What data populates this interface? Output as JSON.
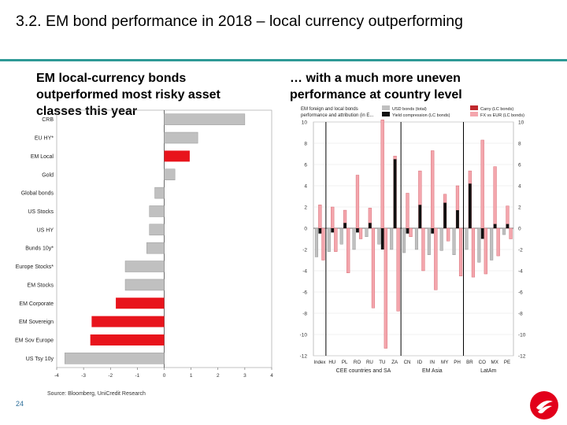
{
  "slide": {
    "title": "3.2. EM bond performance in 2018 – local currency outperforming",
    "subtitle_left": "EM local-currency bonds outperformed most risky asset classes this year",
    "subtitle_right": "… with a much more uneven performance at country level",
    "source": "Source: Bloomberg, UniCredit Research",
    "page_number": "24"
  },
  "colors": {
    "teal_rule": "#2e9a96",
    "red": "#e8141c",
    "grey": "#c0c0c0",
    "black": "#111111",
    "dark_red": "#c0282d",
    "pink": "#f4a6ad",
    "logo_red": "#e2001a"
  },
  "chart_data": [
    {
      "type": "bar",
      "orientation": "horizontal",
      "categories": [
        "CRB",
        "EU HY*",
        "EM Local",
        "Gold",
        "Global bonds",
        "US Stocks",
        "US HY",
        "Bunds 10y*",
        "Europe Stocks*",
        "EM Stocks",
        "EM Corporate",
        "EM Sovereign",
        "EM Sov Europe",
        "US Tsy 10y"
      ],
      "values": [
        3.0,
        1.25,
        0.95,
        0.4,
        -0.35,
        -0.55,
        -0.55,
        -0.65,
        -1.45,
        -1.45,
        -1.8,
        -2.7,
        -2.75,
        -3.7
      ],
      "highlight": [
        false,
        false,
        true,
        false,
        false,
        false,
        false,
        false,
        false,
        false,
        true,
        true,
        true,
        false
      ],
      "xlim": [
        -4,
        4
      ],
      "xticks": [
        "-4",
        "-3",
        "-2",
        "-1",
        "0",
        "1",
        "2",
        "3",
        "4"
      ]
    },
    {
      "type": "bar",
      "legend": {
        "title_line1": "EM foreign and local bonds",
        "title_line2": "performance and attribution (in E...",
        "items": [
          "USD bonds (total)",
          "Yield compression (LC bonds)",
          "Carry (LC bonds)",
          "FX vs EUR (LC bonds)"
        ]
      },
      "categories": [
        "Index",
        "HU",
        "PL",
        "RO",
        "RU",
        "TU",
        "ZA",
        "CN",
        "ID",
        "IN",
        "MY",
        "PH",
        "BR",
        "CO",
        "MX",
        "PE"
      ],
      "series": [
        {
          "name": "USD bonds (total)",
          "values": [
            -2.7,
            -2.2,
            -1.5,
            -2.0,
            -0.8,
            -1.5,
            -2.0,
            -2.3,
            -2.0,
            -2.5,
            -2.1,
            -2.5,
            -2.0,
            -3.2,
            -3.0,
            -0.6
          ]
        },
        {
          "name": "Carry (LC bonds)",
          "values": [
            2.2,
            2.0,
            1.7,
            5.0,
            1.9,
            10.2,
            6.8,
            3.3,
            5.4,
            7.3,
            3.2,
            4.0,
            5.4,
            8.3,
            5.8,
            2.1
          ]
        },
        {
          "name": "Yield compression (LC bonds)",
          "values": [
            -0.5,
            -0.4,
            0.5,
            -0.4,
            0.5,
            -2.0,
            6.5,
            -0.5,
            2.2,
            -0.5,
            2.4,
            1.7,
            4.2,
            -1.0,
            0.4,
            0.4
          ]
        },
        {
          "name": "FX vs EUR (LC bonds)",
          "values": [
            -3.0,
            -2.2,
            -4.2,
            -1.0,
            -7.5,
            -11.3,
            -7.8,
            -0.8,
            -4.0,
            -5.8,
            -1.2,
            -4.5,
            -4.6,
            -4.3,
            -2.6,
            -1.0
          ]
        }
      ],
      "ylim": [
        -12,
        10
      ],
      "yticks": [
        "10",
        "8",
        "6",
        "4",
        "2",
        "0",
        "-2",
        "-4",
        "-6",
        "-8",
        "-10",
        "-12"
      ],
      "groups": [
        {
          "label": "CEE countries and SA",
          "from": 1,
          "to": 6
        },
        {
          "label": "EM Asia",
          "from": 7,
          "to": 11
        },
        {
          "label": "LatAm",
          "from": 12,
          "to": 15
        }
      ]
    }
  ]
}
